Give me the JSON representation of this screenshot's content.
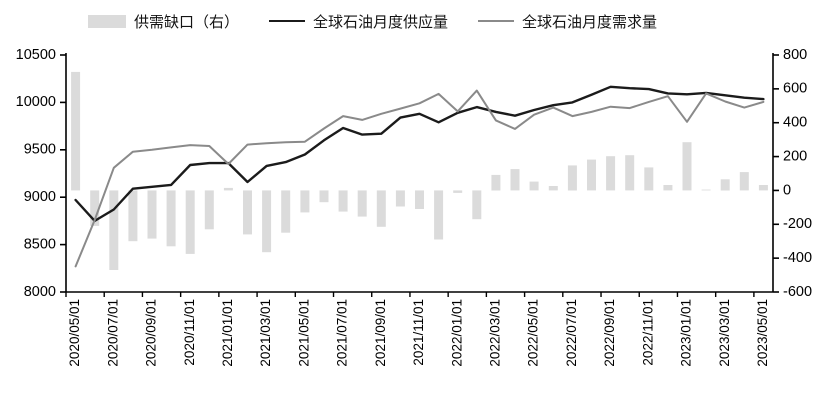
{
  "legend": [
    {
      "label": "供需缺口（右）",
      "type": "bar",
      "color": "#dbdbdb"
    },
    {
      "label": "全球石油月度供应量",
      "type": "line",
      "color": "#1b1b1b"
    },
    {
      "label": "全球石油月度需求量",
      "type": "line",
      "color": "#8a8a8a"
    }
  ],
  "chart_data": {
    "type": "combo-bar-line",
    "title": "",
    "categories": [
      "2020/05/01",
      "2020/06/01",
      "2020/07/01",
      "2020/08/01",
      "2020/09/01",
      "2020/10/01",
      "2020/11/01",
      "2020/12/01",
      "2021/01/01",
      "2021/02/01",
      "2021/03/01",
      "2021/04/01",
      "2021/05/01",
      "2021/06/01",
      "2021/07/01",
      "2021/08/01",
      "2021/09/01",
      "2021/10/01",
      "2021/11/01",
      "2021/12/01",
      "2022/01/01",
      "2022/02/01",
      "2022/03/01",
      "2022/04/01",
      "2022/05/01",
      "2022/06/01",
      "2022/07/01",
      "2022/08/01",
      "2022/09/01",
      "2022/10/01",
      "2022/11/01",
      "2022/12/01",
      "2023/01/01",
      "2023/02/01",
      "2023/03/01",
      "2023/04/01",
      "2023/05/01"
    ],
    "x_labels_shown": [
      "2020/05/01",
      "2020/07/01",
      "2020/09/01",
      "2020/11/01",
      "2021/01/01",
      "2021/03/01",
      "2021/05/01",
      "2021/07/01",
      "2021/09/01",
      "2021/11/01",
      "2022/01/01",
      "2022/03/01",
      "2022/05/01",
      "2022/07/01",
      "2022/09/01",
      "2022/11/01",
      "2023/01/01",
      "2023/03/01",
      "2023/05/01"
    ],
    "x_tick_every": 2,
    "series": [
      {
        "name": "供需缺口（右）",
        "type": "bar",
        "axis": "right",
        "color": "#dbdbdb",
        "values": [
          700,
          -210,
          -470,
          -300,
          -285,
          -330,
          -375,
          -230,
          15,
          -260,
          -365,
          -250,
          -130,
          -70,
          -125,
          -155,
          -215,
          -95,
          -110,
          -290,
          -15,
          -170,
          92,
          126,
          52,
          26,
          148,
          182,
          202,
          208,
          136,
          32,
          285,
          5,
          66,
          108,
          32
        ]
      },
      {
        "name": "全球石油月度供应量",
        "type": "line",
        "axis": "left",
        "color": "#1b1b1b",
        "values": [
          8970,
          8750,
          8870,
          9090,
          9110,
          9130,
          9340,
          9360,
          9360,
          9160,
          9330,
          9370,
          9450,
          9600,
          9730,
          9660,
          9670,
          9840,
          9880,
          9790,
          9890,
          9950,
          9900,
          9860,
          9920,
          9970,
          10000,
          10080,
          10165,
          10150,
          10140,
          10095,
          10085,
          10100,
          10075,
          10050,
          10035
        ]
      },
      {
        "name": "全球石油月度需求量",
        "type": "line",
        "axis": "left",
        "color": "#8a8a8a",
        "values": [
          8270,
          8760,
          9310,
          9480,
          9500,
          9525,
          9550,
          9540,
          9350,
          9555,
          9570,
          9580,
          9585,
          9725,
          9855,
          9815,
          9880,
          9935,
          9990,
          10090,
          9905,
          10125,
          9810,
          9720,
          9870,
          9945,
          9855,
          9900,
          9955,
          9940,
          10005,
          10065,
          9795,
          10095,
          10010,
          9945,
          10005
        ]
      }
    ],
    "left_axis": {
      "min": 8000,
      "max": 10500,
      "ticks": [
        10500,
        10000,
        9500,
        9000,
        8500,
        8000
      ]
    },
    "right_axis": {
      "min": -600,
      "max": 800,
      "ticks": [
        800,
        600,
        400,
        200,
        0,
        -200,
        -400,
        -600
      ]
    },
    "grid": false,
    "legend_position": "top"
  }
}
